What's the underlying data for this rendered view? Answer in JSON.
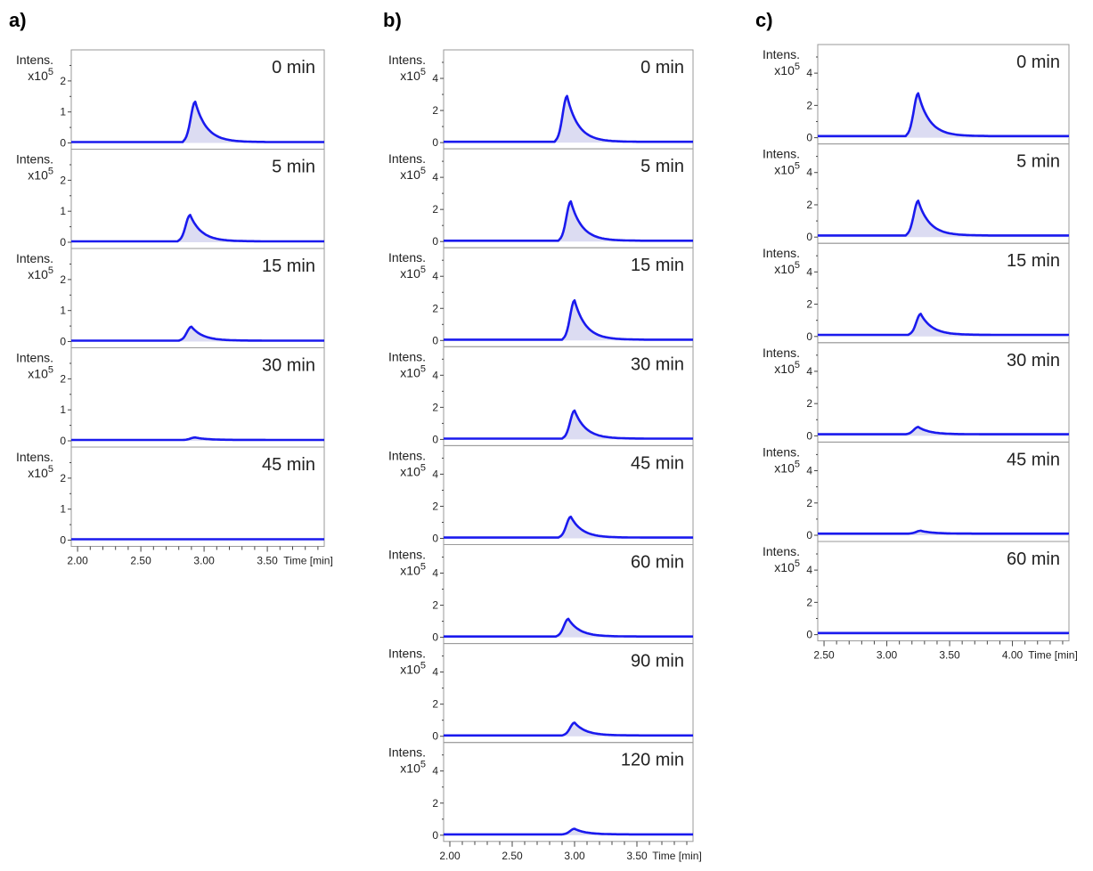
{
  "panel_labels": [
    "a)",
    "b)",
    "c)"
  ],
  "y_label": {
    "line1": "Intens.",
    "line2_prefix": "x10",
    "line2_exp": "5"
  },
  "x_unit_label": "Time [min]",
  "chart_data": [
    {
      "type": "line",
      "panel": "a)",
      "xlabel": "Time [min]",
      "ylabel": "Intens. x10^5",
      "xlim": [
        1.95,
        3.95
      ],
      "x_ticks": [
        "2.00",
        "2.50",
        "3.00",
        "3.50"
      ],
      "ylim": [
        0,
        2.6
      ],
      "y_ticks": [
        "0",
        "1",
        "2"
      ],
      "grid": false,
      "filled": true,
      "line_color": "#1a1aee",
      "fill_color": "#dcdcf2",
      "traces": [
        {
          "time_label": "0 min",
          "peak_rt": 2.93,
          "peak_height": 1.3,
          "baseline": 0.03
        },
        {
          "time_label": "5 min",
          "peak_rt": 2.89,
          "peak_height": 0.85,
          "baseline": 0.03
        },
        {
          "time_label": "15 min",
          "peak_rt": 2.9,
          "peak_height": 0.45,
          "baseline": 0.03
        },
        {
          "time_label": "30 min",
          "peak_rt": 2.93,
          "peak_height": 0.08,
          "baseline": 0.03
        },
        {
          "time_label": "45 min",
          "peak_rt": 2.93,
          "peak_height": 0.0,
          "baseline": 0.03
        }
      ]
    },
    {
      "type": "line",
      "panel": "b)",
      "xlabel": "Time [min]",
      "ylabel": "Intens. x10^5",
      "xlim": [
        1.95,
        3.95
      ],
      "x_ticks": [
        "2.00",
        "2.50",
        "3.00",
        "3.50"
      ],
      "ylim": [
        0,
        5.0
      ],
      "y_ticks": [
        "0",
        "2",
        "4"
      ],
      "grid": false,
      "filled": true,
      "line_color": "#1a1aee",
      "fill_color": "#dcdcf2",
      "traces": [
        {
          "time_label": "0 min",
          "peak_rt": 2.94,
          "peak_height": 2.85,
          "baseline": 0.05
        },
        {
          "time_label": "5 min",
          "peak_rt": 2.97,
          "peak_height": 2.45,
          "baseline": 0.05
        },
        {
          "time_label": "15 min",
          "peak_rt": 3.0,
          "peak_height": 2.45,
          "baseline": 0.05
        },
        {
          "time_label": "30 min",
          "peak_rt": 3.0,
          "peak_height": 1.75,
          "baseline": 0.05
        },
        {
          "time_label": "45 min",
          "peak_rt": 2.97,
          "peak_height": 1.3,
          "baseline": 0.05
        },
        {
          "time_label": "60 min",
          "peak_rt": 2.95,
          "peak_height": 1.1,
          "baseline": 0.05
        },
        {
          "time_label": "90 min",
          "peak_rt": 3.0,
          "peak_height": 0.8,
          "baseline": 0.05
        },
        {
          "time_label": "120 min",
          "peak_rt": 3.0,
          "peak_height": 0.35,
          "baseline": 0.05
        }
      ]
    },
    {
      "type": "line",
      "panel": "c)",
      "xlabel": "Time [min]",
      "ylabel": "Intens. x10^5",
      "xlim": [
        2.45,
        4.45
      ],
      "x_ticks": [
        "2.50",
        "3.00",
        "3.50",
        "4.00"
      ],
      "ylim": [
        0,
        5.0
      ],
      "y_ticks": [
        "0",
        "2",
        "4"
      ],
      "grid": false,
      "filled": true,
      "line_color": "#1a1aee",
      "fill_color": "#dcdcf2",
      "traces": [
        {
          "time_label": "0 min",
          "peak_rt": 3.25,
          "peak_height": 2.65,
          "baseline": 0.1
        },
        {
          "time_label": "5 min",
          "peak_rt": 3.25,
          "peak_height": 2.15,
          "baseline": 0.1
        },
        {
          "time_label": "15 min",
          "peak_rt": 3.27,
          "peak_height": 1.3,
          "baseline": 0.1
        },
        {
          "time_label": "30 min",
          "peak_rt": 3.25,
          "peak_height": 0.45,
          "baseline": 0.1
        },
        {
          "time_label": "45 min",
          "peak_rt": 3.27,
          "peak_height": 0.18,
          "baseline": 0.1
        },
        {
          "time_label": "60 min",
          "peak_rt": 3.27,
          "peak_height": 0.0,
          "baseline": 0.1
        }
      ]
    }
  ]
}
